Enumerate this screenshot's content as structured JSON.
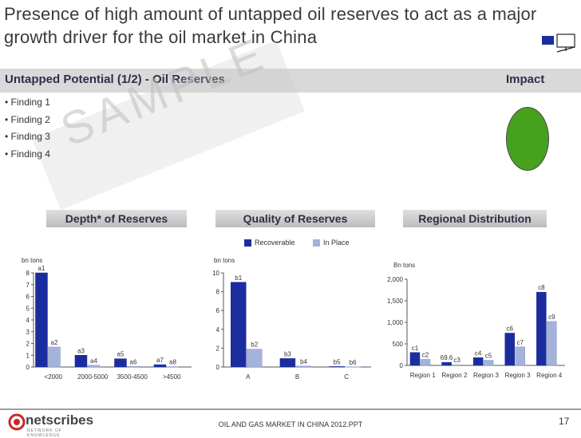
{
  "title": "Presence of high amount of untapped oil reserves to act as a major growth driver for the oil market in China",
  "header": {
    "left_label": "Untapped Potential (1/2) - Oil Reserves",
    "right_label": "Impact"
  },
  "findings": [
    "• Finding 1",
    "• Finding 2",
    "• Finding 3",
    "• Finding 4"
  ],
  "impact_color": "#46a11d",
  "watermark": "SAMPLE",
  "sections": {
    "depth": "Depth* of Reserves",
    "quality": "Quality of Reserves",
    "regional": "Regional Distribution"
  },
  "legend": {
    "recoverable": "Recoverable",
    "in_place": "In Place",
    "recoverable_color": "#1b2d9e",
    "in_place_color": "#a4b3d9"
  },
  "chart_data": [
    {
      "type": "bar",
      "unit_label": "bn tons",
      "categories": [
        "<2000",
        "2000-5000",
        "3500-4500",
        ">4500"
      ],
      "series": [
        {
          "name": "Recoverable",
          "values": [
            8.0,
            1.0,
            0.7,
            0.2
          ],
          "labels": [
            "a1",
            "a3",
            "a5",
            "a7"
          ]
        },
        {
          "name": "In Place",
          "values": [
            1.7,
            0.15,
            0.05,
            0.03
          ],
          "labels": [
            "a2",
            "a4",
            "a6",
            "a8"
          ]
        }
      ],
      "ylim": [
        0,
        8
      ],
      "yticks": [
        "0",
        "1",
        "2",
        "3",
        "4",
        "5",
        "6",
        "7",
        "8"
      ]
    },
    {
      "type": "bar",
      "unit_label": "bn tons",
      "categories": [
        "A",
        "B",
        "C"
      ],
      "series": [
        {
          "name": "Recoverable",
          "values": [
            9.0,
            0.9,
            0.05
          ],
          "labels": [
            "b1",
            "b3",
            "b5"
          ]
        },
        {
          "name": "In Place",
          "values": [
            1.9,
            0.1,
            0.02
          ],
          "labels": [
            "b2",
            "b4",
            "b6"
          ]
        }
      ],
      "ylim": [
        0,
        10
      ],
      "yticks": [
        "0",
        "2",
        "4",
        "6",
        "8",
        "10"
      ]
    },
    {
      "type": "bar",
      "unit_label": "Bn tons",
      "categories": [
        "Region 1",
        "Region 2",
        "Region 3",
        "Region 3",
        "Region 4"
      ],
      "series": [
        {
          "name": "Recoverable",
          "values": [
            300,
            69.6,
            180,
            750,
            1700
          ],
          "labels": [
            "c1",
            "69.6",
            "c4",
            "c6",
            "c8"
          ]
        },
        {
          "name": "In Place",
          "values": [
            140,
            15,
            120,
            430,
            1020
          ],
          "labels": [
            "c2",
            "c3",
            "c5",
            "c7",
            "c9"
          ]
        }
      ],
      "ylim": [
        0,
        2000
      ],
      "yticks": [
        "0",
        "500",
        "1,000",
        "1,500",
        "2,000"
      ]
    }
  ],
  "footer": {
    "logo_name": "netscribes",
    "logo_tagline": "NETWORK OF KNOWLEDGE",
    "text": "OIL AND GAS MARKET IN CHINA 2012.PPT",
    "page": "17"
  }
}
